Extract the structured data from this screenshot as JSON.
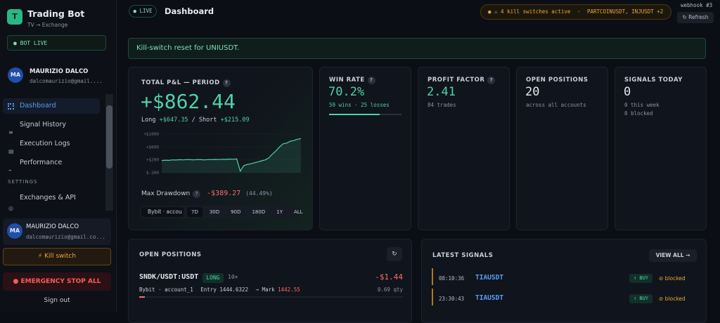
{
  "sidebar": {
    "logo": "T",
    "title": "Trading Bot",
    "subtitle": "TV → Exchange",
    "status": "BOT LIVE",
    "user": {
      "avatar": "MA",
      "name": "MAURIZIO DALCO",
      "email": "dalcomaurizio@gmail...."
    },
    "nav": [
      "Dashboard",
      "Signal History",
      "Execution Logs",
      "Performance"
    ],
    "section": "SETTINGS",
    "settings_nav": [
      "Exchanges & API"
    ],
    "footer_user": {
      "avatar": "MA",
      "name": "MAURIZIO DALCO",
      "email": "dalcomaurizio@gmail.co..."
    },
    "kill_switch": "⚡ Kill switch",
    "emergency": "EMERGENCY STOP ALL",
    "sign_out": "Sign out"
  },
  "header": {
    "live": "LIVE",
    "title": "Dashboard",
    "alert": "⚠ 4 kill switches active",
    "separator": "·",
    "alert_symbols": "PARTCOINUSDT, INJUSDT +2",
    "webhook": "webhook #3",
    "refresh": "↻ Refresh"
  },
  "banner": "Kill-switch reset for UNIUSDT.",
  "pnl": {
    "label": "TOTAL P&L — PERIOD",
    "help": "?",
    "value": "+$862.44",
    "long_label": "Long",
    "long": "+$647.35",
    "short_label": "/ Short",
    "short": "+$215.09",
    "chart": {
      "ylim": [
        -200,
        1000
      ],
      "yticks": [
        {
          "value": 1000,
          "label": "+$1000"
        },
        {
          "value": 600,
          "label": "+$600"
        },
        {
          "value": 200,
          "label": "+$200"
        },
        {
          "value": -200,
          "label": "$-200"
        }
      ],
      "color": "#4fd1a5",
      "values": [
        180,
        190,
        185,
        200,
        195,
        205,
        200,
        210,
        205,
        200,
        210,
        205,
        200,
        210,
        205,
        215,
        210,
        220,
        215,
        225,
        220,
        230,
        -150,
        20,
        60,
        80,
        110,
        140,
        170,
        200,
        260,
        380,
        480,
        600,
        700,
        720,
        780,
        800,
        840,
        862
      ]
    },
    "drawdown_label": "Max Drawdown",
    "drawdown_help": "?",
    "drawdown": "-$389.27",
    "drawdown_pct": "(44.49%)",
    "account": "Bybit · accou",
    "periods": [
      "7D",
      "30D",
      "90D",
      "180D",
      "1Y",
      "ALL"
    ]
  },
  "stats": [
    {
      "label": "WIN RATE",
      "help": "?",
      "value": "70.2%",
      "rate": 70.2,
      "sub": "59 wins · 25 losses"
    },
    {
      "label": "PROFIT FACTOR",
      "help": "?",
      "value": "2.41",
      "sub": "84 trades"
    },
    {
      "label": "OPEN POSITIONS",
      "value": "20",
      "sub": "across all accounts"
    },
    {
      "label": "SIGNALS TODAY",
      "value": "0",
      "sub": "0 this week",
      "sub2": "0 blocked"
    }
  ],
  "positions": {
    "title": "OPEN POSITIONS",
    "refresh": "↻",
    "rows": [
      {
        "symbol": "SNDK/USDT:USDT",
        "side": "LONG",
        "leverage": "10×",
        "pnl": "-$1.44",
        "account": "Bybit · account_1",
        "entry_label": "Entry",
        "entry": "1444.6322",
        "mark_label": "→ Mark",
        "mark": "1442.55",
        "qty": "0.69 qty"
      }
    ]
  },
  "signals": {
    "title": "LATEST SIGNALS",
    "view_all": "VIEW ALL →",
    "rows": [
      {
        "time": "08:10:36",
        "symbol": "TIAUSDT",
        "action": "↑ BUY",
        "status": "⊘ blocked"
      },
      {
        "time": "23:30:43",
        "symbol": "TIAUSDT",
        "action": "↑ BUY",
        "status": "⊘ blocked"
      }
    ]
  }
}
